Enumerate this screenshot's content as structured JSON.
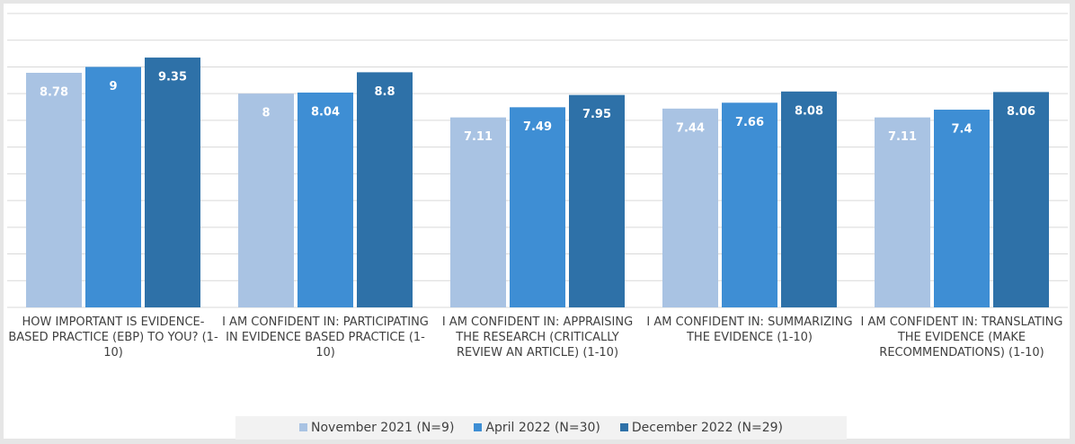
{
  "chart_data": {
    "type": "bar",
    "categories": [
      "HOW IMPORTANT IS EVIDENCE-BASED PRACTICE (EBP) TO YOU? (1-10)",
      "I AM CONFIDENT IN: PARTICIPATING IN EVIDENCE BASED PRACTICE (1-10)",
      "I AM CONFIDENT IN: APPRAISING THE RESEARCH (CRITICALLY REVIEW AN ARTICLE) (1-10)",
      "I AM CONFIDENT IN: SUMMARIZING THE EVIDENCE (1-10)",
      "I AM CONFIDENT IN: TRANSLATING THE EVIDENCE (MAKE RECOMMENDATIONS) (1-10)"
    ],
    "series": [
      {
        "name": "November 2021 (N=9)",
        "color": "#a9c3e3",
        "values": [
          8.78,
          8,
          7.11,
          7.44,
          7.11
        ]
      },
      {
        "name": "April 2022 (N=30)",
        "color": "#3e8ed4",
        "values": [
          9,
          8.04,
          7.49,
          7.66,
          7.4
        ]
      },
      {
        "name": "December 2022 (N=29)",
        "color": "#2e71a8",
        "values": [
          9.35,
          8.8,
          7.95,
          8.08,
          8.06
        ]
      }
    ],
    "ylim": [
      0,
      11
    ],
    "yticks": [
      0,
      1,
      2,
      3,
      4,
      5,
      6,
      7,
      8,
      9,
      10,
      11
    ],
    "grid": true,
    "legend": "bottom"
  }
}
